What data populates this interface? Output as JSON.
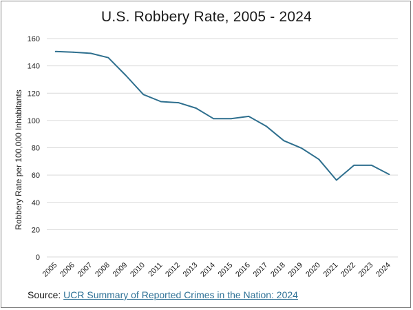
{
  "chart_data": {
    "type": "line",
    "title": "U.S. Robbery Rate, 2005 - 2024",
    "xlabel": "",
    "ylabel": "Robbery Rate per 100,000 Inhabitants",
    "ylim": [
      0,
      160
    ],
    "yticks": [
      0,
      20,
      40,
      60,
      80,
      100,
      120,
      140,
      160
    ],
    "grid": true,
    "legend": "none",
    "line_color": "#2e6f8e",
    "categories": [
      "2005",
      "2006",
      "2007",
      "2008",
      "2009",
      "2010",
      "2011",
      "2012",
      "2013",
      "2014",
      "2015",
      "2016",
      "2017",
      "2018",
      "2019",
      "2020",
      "2021",
      "2022",
      "2023",
      "2024"
    ],
    "series": [
      {
        "values": [
          150.5,
          150,
          149.2,
          146,
          133,
          119,
          113.8,
          113,
          109,
          101.3,
          101.3,
          103,
          95.8,
          85.2,
          79.8,
          71.5,
          56.3,
          67.2,
          67.2,
          60.5
        ]
      }
    ]
  },
  "source": {
    "label": "Source: ",
    "link_text": "UCR Summary of Reported Crimes in the Nation: 2024"
  },
  "colors": {
    "line": "#2e6f8e",
    "grid": "#d9d9d9",
    "link": "#2e7196"
  }
}
